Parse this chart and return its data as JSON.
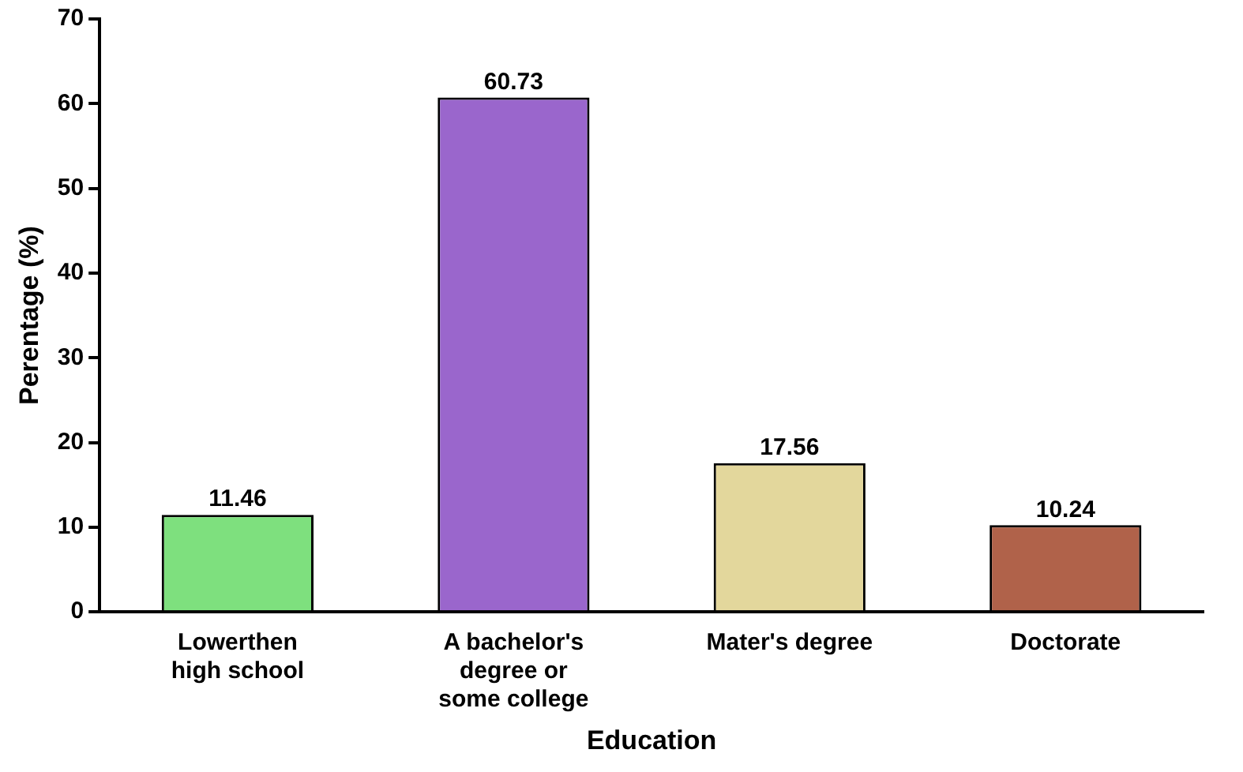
{
  "chart_data": {
    "type": "bar",
    "xlabel": "Education",
    "ylabel": "Perentage (%)",
    "categories": [
      "Lowerthen\nhigh school",
      "A bachelor's\ndegree or\nsome college",
      "Mater's degree",
      "Doctorate"
    ],
    "values": [
      11.46,
      60.73,
      17.56,
      10.24
    ],
    "colors": [
      "#7ee07e",
      "#9a66cc",
      "#e3d79c",
      "#b0624a"
    ],
    "ylim": [
      0,
      70
    ],
    "yticks": [
      0,
      10,
      20,
      30,
      40,
      50,
      60,
      70
    ],
    "grid": false,
    "legend": false,
    "data_labels": true
  }
}
